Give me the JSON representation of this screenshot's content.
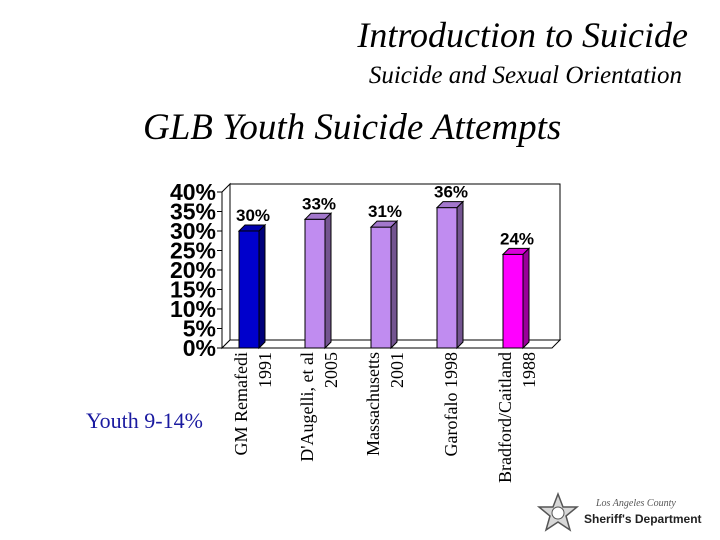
{
  "header": {
    "title": "Introduction to Suicide",
    "subtitle": "Suicide and Sexual Orientation"
  },
  "slide": {
    "title": "GLB Youth Suicide Attempts",
    "side_note": "Youth 9-14%"
  },
  "seal": {
    "top_text": "Los Angeles County",
    "main_text": "Sheriff's Department"
  },
  "colors": {
    "blue_bar": "#0000cc",
    "lavender_bar": "#c08cf0",
    "magenta_bar": "#ff00ff",
    "side_note": "#1a1aa0"
  },
  "chart_data": {
    "type": "bar",
    "title": "GLB Youth Suicide Attempts",
    "categories": [
      [
        "GM Remafedi",
        "1991"
      ],
      [
        "D'Augelli, et al",
        "2005"
      ],
      [
        "Massachusetts",
        "2001"
      ],
      [
        "Garofalo 1998"
      ],
      [
        "Bradford/Caitland",
        "1988"
      ]
    ],
    "values": [
      30,
      33,
      31,
      36,
      24
    ],
    "data_labels": [
      "30%",
      "33%",
      "31%",
      "36%",
      "24%"
    ],
    "bar_colors": [
      "#0000cc",
      "#c08cf0",
      "#c08cf0",
      "#c08cf0",
      "#ff00ff"
    ],
    "ylim": [
      0,
      40
    ],
    "yticks": [
      "0%",
      "5%",
      "10%",
      "15%",
      "20%",
      "25%",
      "30%",
      "35%",
      "40%"
    ],
    "grid": false,
    "style": "3d"
  }
}
